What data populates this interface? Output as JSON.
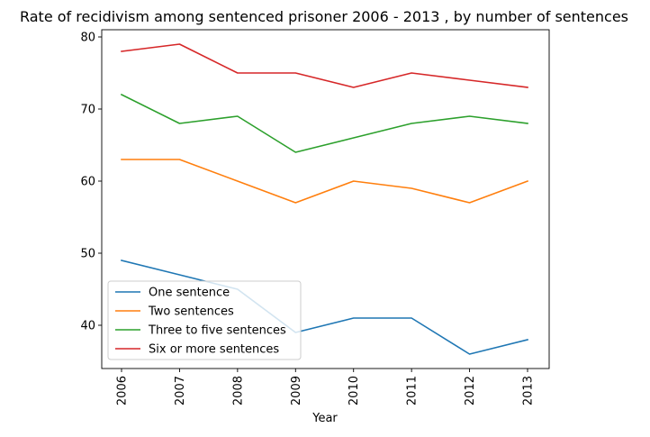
{
  "chart_data": {
    "type": "line",
    "title": "Rate of recidivism among sentenced prisoner 2006 - 2013 , by number of sentences",
    "xlabel": "Year",
    "ylabel": "",
    "categories": [
      "2006",
      "2007",
      "2008",
      "2009",
      "2010",
      "2011",
      "2012",
      "2013"
    ],
    "ylim": [
      34,
      81
    ],
    "yticks": [
      40,
      50,
      60,
      70,
      80
    ],
    "grid": false,
    "legend_position": "lower-left",
    "series": [
      {
        "name": "One sentence",
        "color": "#1f77b4",
        "values": [
          49,
          47,
          45,
          39,
          41,
          41,
          36,
          38
        ]
      },
      {
        "name": "Two sentences",
        "color": "#ff7f0e",
        "values": [
          63,
          63,
          60,
          57,
          60,
          59,
          57,
          60
        ]
      },
      {
        "name": "Three to five sentences",
        "color": "#2ca02c",
        "values": [
          72,
          68,
          69,
          64,
          66,
          68,
          69,
          68
        ]
      },
      {
        "name": "Six or more sentences",
        "color": "#d62728",
        "values": [
          78,
          79,
          75,
          75,
          73,
          75,
          74,
          73
        ]
      }
    ]
  }
}
